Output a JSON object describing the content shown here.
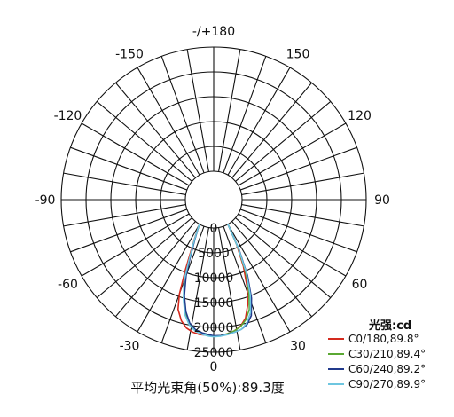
{
  "chart_data": {
    "type": "polar",
    "caption": "平均光束角(50%):89.3度",
    "radial_ticks": [
      0,
      5000,
      10000,
      15000,
      20000,
      25000
    ],
    "r_max": 25000,
    "angle_labels": [
      {
        "angle": 0,
        "text": "0"
      },
      {
        "angle": 30,
        "text": "30"
      },
      {
        "angle": 60,
        "text": "60"
      },
      {
        "angle": 90,
        "text": "90"
      },
      {
        "angle": 120,
        "text": "120"
      },
      {
        "angle": 150,
        "text": "150"
      },
      {
        "angle": 180,
        "text": "-/+180"
      },
      {
        "angle": -150,
        "text": "-150"
      },
      {
        "angle": -120,
        "text": "-120"
      },
      {
        "angle": -90,
        "text": "-90"
      },
      {
        "angle": -60,
        "text": "-60"
      },
      {
        "angle": -30,
        "text": "-30"
      }
    ],
    "legend_title": "光强:cd",
    "series": [
      {
        "name": "C0/180,89.8°",
        "color": "#d42a1e",
        "points": [
          [
            -30,
            0
          ],
          [
            -28,
            1500
          ],
          [
            -25,
            4200
          ],
          [
            -22,
            9500
          ],
          [
            -20,
            14500
          ],
          [
            -18,
            17500
          ],
          [
            -15,
            19500
          ],
          [
            -12,
            20700
          ],
          [
            -9,
            21300
          ],
          [
            -6,
            21600
          ],
          [
            -3,
            21600
          ],
          [
            0,
            21800
          ],
          [
            3,
            21700
          ],
          [
            6,
            21400
          ],
          [
            9,
            21000
          ],
          [
            12,
            20300
          ],
          [
            15,
            19000
          ],
          [
            18,
            16500
          ],
          [
            21,
            13000
          ],
          [
            24,
            9000
          ],
          [
            27,
            4500
          ],
          [
            30,
            0
          ]
        ]
      },
      {
        "name": "C30/210,89.4°",
        "color": "#5aa832",
        "points": [
          [
            -30,
            0
          ],
          [
            -28,
            1300
          ],
          [
            -25,
            3800
          ],
          [
            -22,
            7500
          ],
          [
            -20,
            11500
          ],
          [
            -17,
            15000
          ],
          [
            -14,
            18000
          ],
          [
            -11,
            19800
          ],
          [
            -8,
            20800
          ],
          [
            -5,
            21300
          ],
          [
            -2,
            21600
          ],
          [
            0,
            21800
          ],
          [
            3,
            21700
          ],
          [
            6,
            21400
          ],
          [
            9,
            21000
          ],
          [
            12,
            20400
          ],
          [
            15,
            19300
          ],
          [
            18,
            17500
          ],
          [
            21,
            14000
          ],
          [
            24,
            10000
          ],
          [
            27,
            5000
          ],
          [
            30,
            0
          ]
        ]
      },
      {
        "name": "C60/240,89.2°",
        "color": "#213a8c",
        "points": [
          [
            -30,
            0
          ],
          [
            -28,
            1200
          ],
          [
            -25,
            3500
          ],
          [
            -22,
            7000
          ],
          [
            -20,
            10500
          ],
          [
            -17,
            14500
          ],
          [
            -14,
            17500
          ],
          [
            -11,
            19600
          ],
          [
            -8,
            20700
          ],
          [
            -5,
            21200
          ],
          [
            -2,
            21500
          ],
          [
            0,
            21700
          ],
          [
            3,
            21700
          ],
          [
            6,
            21500
          ],
          [
            9,
            21300
          ],
          [
            12,
            21000
          ],
          [
            15,
            20300
          ],
          [
            18,
            18800
          ],
          [
            21,
            15500
          ],
          [
            24,
            11000
          ],
          [
            27,
            5500
          ],
          [
            30,
            0
          ]
        ]
      },
      {
        "name": "C90/270,89.9°",
        "color": "#6ec6e0",
        "points": [
          [
            -30,
            0
          ],
          [
            -28,
            1400
          ],
          [
            -25,
            3900
          ],
          [
            -22,
            7800
          ],
          [
            -20,
            11800
          ],
          [
            -17,
            15200
          ],
          [
            -14,
            18200
          ],
          [
            -11,
            20000
          ],
          [
            -8,
            21000
          ],
          [
            -5,
            21500
          ],
          [
            -2,
            21800
          ],
          [
            0,
            21900
          ],
          [
            3,
            21800
          ],
          [
            6,
            21600
          ],
          [
            9,
            21300
          ],
          [
            12,
            21000
          ],
          [
            15,
            20000
          ],
          [
            18,
            18200
          ],
          [
            21,
            14800
          ],
          [
            24,
            10500
          ],
          [
            27,
            5200
          ],
          [
            30,
            0
          ]
        ]
      }
    ]
  }
}
